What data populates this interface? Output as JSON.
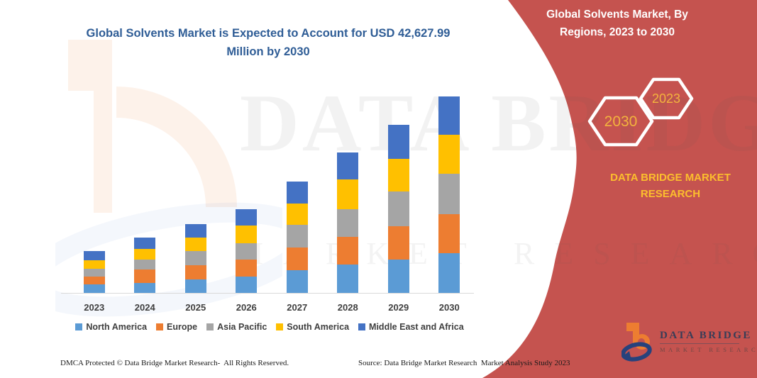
{
  "title": {
    "text": "Global Solvents Market is Expected to Account for USD 42,627.99 Million by 2030",
    "color": "#2f5d96"
  },
  "banner": {
    "title": "Global Solvents Market, By Regions, 2023 to 2030",
    "color": "#c5534f",
    "badges": [
      {
        "label": "2030"
      },
      {
        "label": "2023"
      }
    ],
    "badge_text_color": "#f3b33d",
    "brand_line1": "DATA BRIDGE MARKET",
    "brand_line2": "RESEARCH",
    "brand_color": "#fcbe2d"
  },
  "watermark": {
    "line1": "DATA BRIDGE",
    "line2": "MARKET RESEARCH"
  },
  "chart_data": {
    "type": "bar",
    "stacked": true,
    "title": "Global Solvents Market is Expected to Account for USD 42,627.99 Million by 2030",
    "unit": "USD Million",
    "categories": [
      "2023",
      "2024",
      "2025",
      "2026",
      "2027",
      "2028",
      "2029",
      "2030"
    ],
    "series": [
      {
        "name": "North America",
        "color": "#5B9BD5",
        "values": [
          1850,
          2220,
          2990,
          3490,
          4990,
          6220,
          7190,
          8620
        ]
      },
      {
        "name": "Europe",
        "color": "#ED7D31",
        "values": [
          1650,
          2820,
          3080,
          3690,
          4820,
          6000,
          7230,
          8530
        ]
      },
      {
        "name": "Asia Pacific",
        "color": "#A5A5A5",
        "values": [
          1800,
          2150,
          2970,
          3650,
          4930,
          6000,
          7540,
          8660
        ]
      },
      {
        "name": "South America",
        "color": "#FFC000",
        "values": [
          1780,
          2360,
          3030,
          3800,
          4730,
          6400,
          7190,
          8510
        ]
      },
      {
        "name": "Middle East and Africa",
        "color": "#4472C4",
        "values": [
          2060,
          2460,
          2880,
          3490,
          4770,
          5800,
          7330,
          8307.99
        ]
      }
    ],
    "totals": [
      9140,
      12010,
      14950,
      18120,
      24240,
      30420,
      36480,
      42627.99
    ],
    "xlabel": "",
    "ylabel": "",
    "ylim": [
      0,
      45000
    ],
    "y_axis_visible": false,
    "grid": false,
    "legend_position": "bottom",
    "axis_line_color": "#d9d9d9"
  },
  "footer": {
    "left": "DMCA Protected © Data Bridge Market Research-  All Rights Reserved.",
    "source": "Source: Data Bridge Market Research  Market Analysis Study 2023"
  },
  "logo": {
    "name": "DATA BRIDGE",
    "subtitle": "MARKET RESEARCH"
  }
}
